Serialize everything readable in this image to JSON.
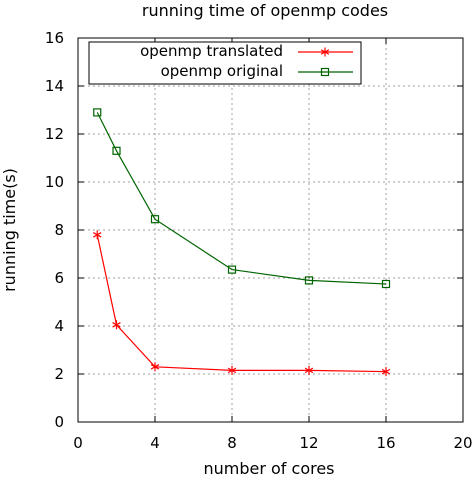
{
  "chart_data": {
    "type": "line",
    "title": "running time of openmp codes",
    "xlabel": "number of cores",
    "ylabel": "running time(s)",
    "xlim": [
      0,
      20
    ],
    "ylim": [
      0,
      16
    ],
    "xticks": [
      0,
      4,
      8,
      12,
      16,
      20
    ],
    "yticks": [
      0,
      2,
      4,
      6,
      8,
      10,
      12,
      14,
      16
    ],
    "grid": true,
    "legend_position": "top-center",
    "series": [
      {
        "name": "openmp translated",
        "color": "#ff0000",
        "marker": "star",
        "x": [
          1,
          2,
          4,
          8,
          12,
          16
        ],
        "y": [
          7.8,
          4.05,
          2.3,
          2.15,
          2.15,
          2.1
        ]
      },
      {
        "name": "openmp original",
        "color": "#006400",
        "marker": "square",
        "x": [
          1,
          2,
          4,
          8,
          12,
          16
        ],
        "y": [
          12.9,
          11.3,
          8.45,
          6.35,
          5.9,
          5.75
        ]
      }
    ]
  }
}
